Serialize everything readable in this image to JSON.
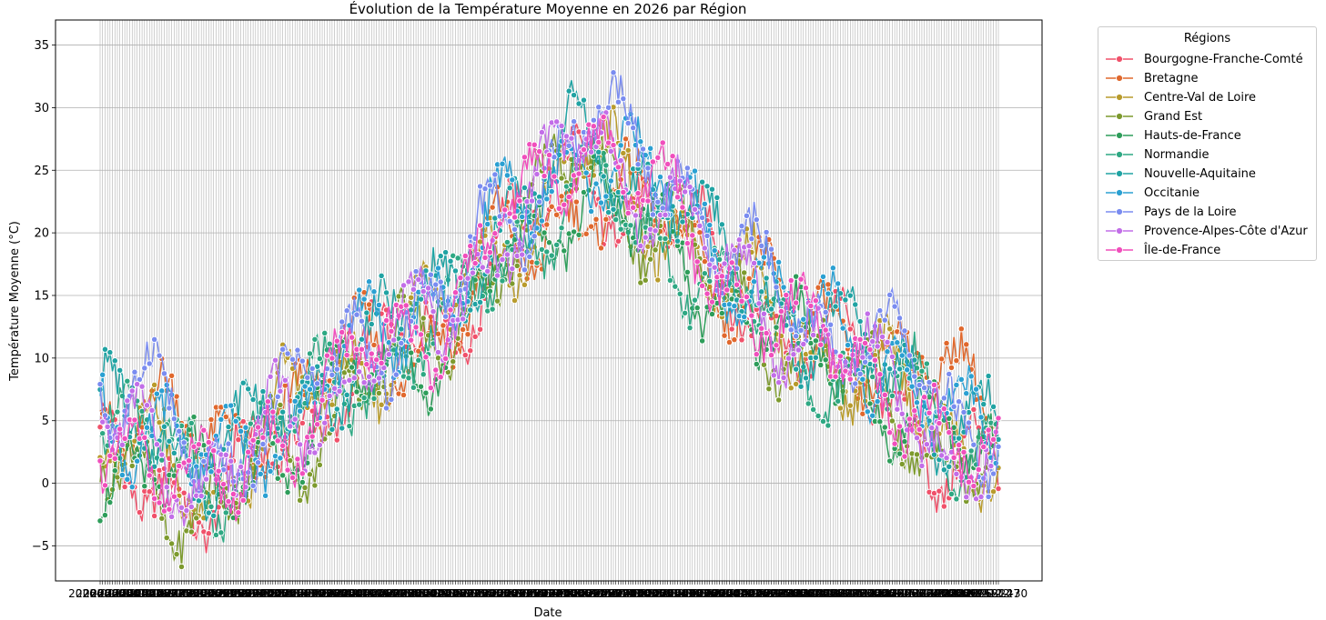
{
  "chart_data": {
    "type": "line",
    "title": "Évolution de la Température Moyenne en 2026 par Région",
    "xlabel": "Date",
    "ylabel": "Température Moyenne (°C)",
    "ylim": [
      -7.8,
      37.0
    ],
    "yticks": [
      -5,
      0,
      5,
      10,
      15,
      20,
      25,
      30,
      35
    ],
    "ytick_labels": [
      "−5",
      "0",
      "5",
      "10",
      "15",
      "20",
      "25",
      "30",
      "35"
    ],
    "grid": true,
    "x_start": "2026-01-01",
    "x_end": "2026-12-31",
    "legend": {
      "title": "Régions",
      "placement": "outside-right-top"
    },
    "series": [
      {
        "name": "Bourgogne-Franche-Comté",
        "color": "#f0516a",
        "marker": "circle",
        "monthly_values": [
          1.5,
          -2.0,
          4.0,
          9.0,
          12.5,
          20.0,
          25.0,
          21.0,
          16.0,
          11.0,
          7.5,
          1.0
        ]
      },
      {
        "name": "Bretagne",
        "color": "#e0682d",
        "marker": "x",
        "monthly_values": [
          6.5,
          2.5,
          6.5,
          10.0,
          12.0,
          18.5,
          23.0,
          21.0,
          16.5,
          12.0,
          11.0,
          7.0
        ]
      },
      {
        "name": "Centre-Val de Loire",
        "color": "#b89b2c",
        "marker": "square",
        "monthly_values": [
          3.0,
          -0.5,
          5.5,
          10.0,
          13.0,
          20.0,
          26.0,
          21.5,
          15.5,
          10.5,
          7.5,
          3.0
        ]
      },
      {
        "name": "Grand Est",
        "color": "#7d9a2e",
        "marker": "plus",
        "monthly_values": [
          1.0,
          -2.5,
          3.0,
          8.0,
          12.0,
          19.0,
          27.0,
          20.0,
          14.5,
          10.5,
          6.5,
          1.5
        ]
      },
      {
        "name": "Hauts-de-France",
        "color": "#2e9d5a",
        "marker": "diamond",
        "monthly_values": [
          2.0,
          -1.0,
          3.5,
          8.5,
          11.5,
          18.0,
          24.0,
          18.5,
          14.0,
          10.0,
          7.0,
          2.5
        ]
      },
      {
        "name": "Normandie",
        "color": "#2ea883",
        "marker": "thin-diamond",
        "monthly_values": [
          4.0,
          0.5,
          5.0,
          9.0,
          12.0,
          19.0,
          24.0,
          19.0,
          14.5,
          10.0,
          8.0,
          3.5
        ]
      },
      {
        "name": "Nouvelle-Aquitaine",
        "color": "#20a3a3",
        "marker": "triangle-up",
        "monthly_values": [
          5.0,
          1.5,
          6.0,
          11.0,
          15.0,
          21.5,
          27.5,
          23.0,
          16.5,
          12.0,
          9.5,
          4.5
        ]
      },
      {
        "name": "Occitanie",
        "color": "#2ba0d2",
        "marker": "x-thin",
        "monthly_values": [
          5.5,
          1.0,
          5.5,
          10.5,
          15.5,
          21.0,
          27.0,
          23.5,
          17.5,
          12.5,
          10.0,
          4.0
        ]
      },
      {
        "name": "Pays de la Loire",
        "color": "#7a8cf0",
        "marker": "triangle-down",
        "monthly_values": [
          7.0,
          1.5,
          6.5,
          11.5,
          14.0,
          22.5,
          28.5,
          25.5,
          17.0,
          13.0,
          10.5,
          4.5
        ]
      },
      {
        "name": "Provence-Alpes-Côte d'Azur",
        "color": "#c26ee8",
        "marker": "star",
        "monthly_values": [
          4.0,
          0.0,
          4.5,
          9.5,
          13.0,
          21.0,
          27.5,
          22.5,
          16.0,
          11.5,
          8.0,
          2.0
        ]
      },
      {
        "name": "Île-de-France",
        "color": "#f04fbc",
        "marker": "circle-large",
        "monthly_values": [
          3.5,
          -1.5,
          5.0,
          9.5,
          13.5,
          21.0,
          28.0,
          21.5,
          15.5,
          11.0,
          8.0,
          1.5
        ]
      }
    ]
  }
}
